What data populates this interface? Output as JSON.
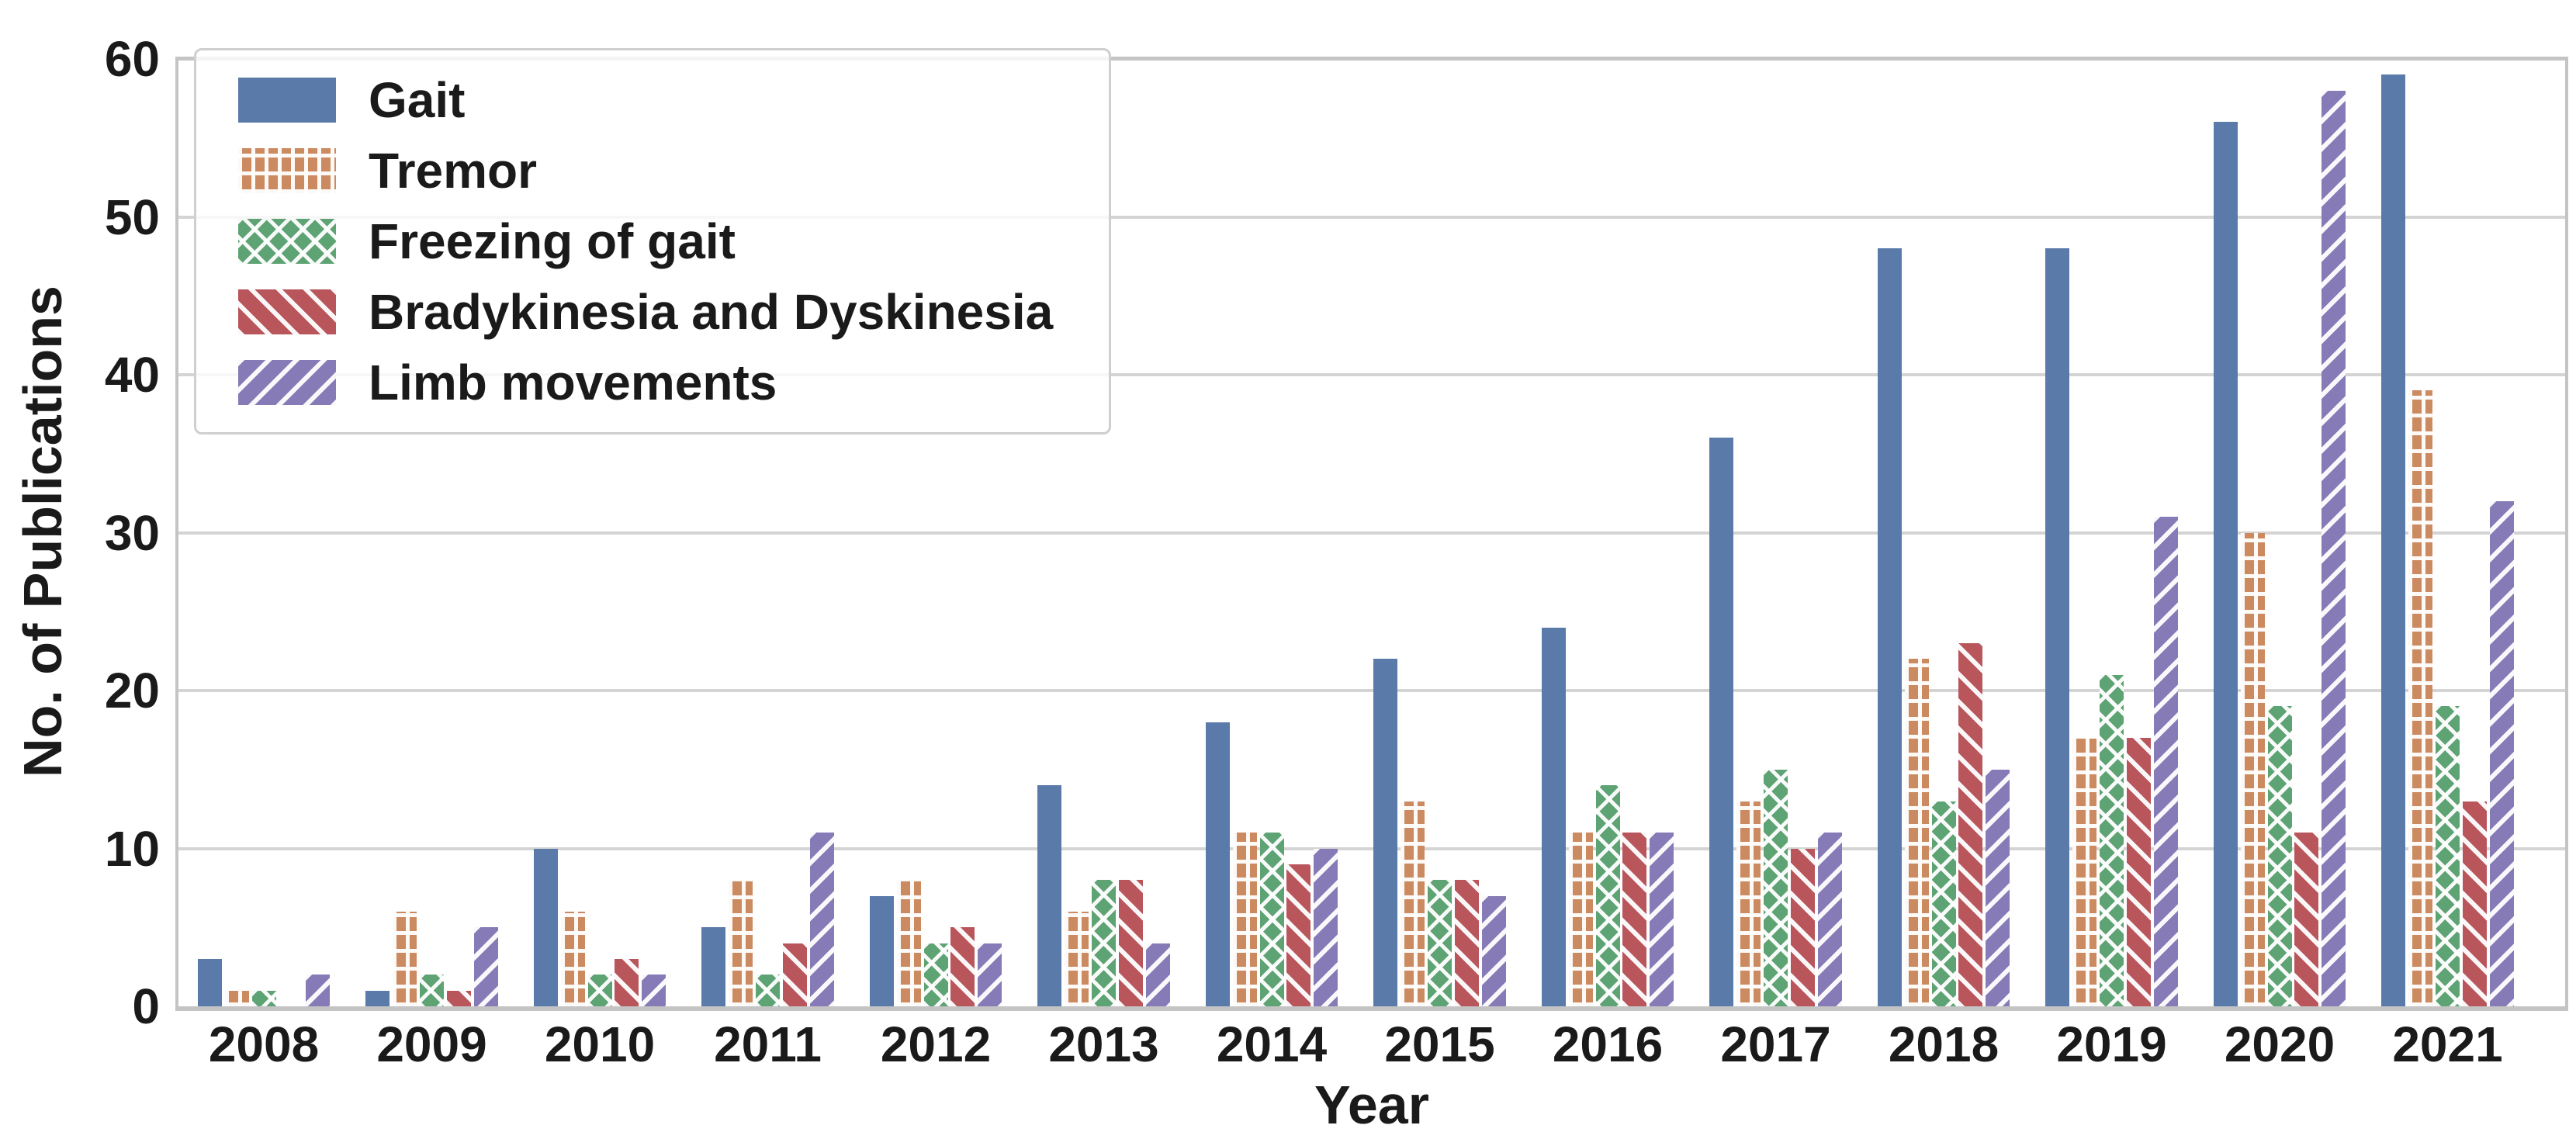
{
  "chart_data": {
    "type": "bar",
    "title": "",
    "xlabel": "Year",
    "ylabel": "No. of Publications",
    "ylim": [
      0,
      60
    ],
    "yticks": [
      0,
      10,
      20,
      30,
      40,
      50,
      60
    ],
    "grid": true,
    "legend_position": "upper left",
    "categories": [
      "2008",
      "2009",
      "2010",
      "2011",
      "2012",
      "2013",
      "2014",
      "2015",
      "2016",
      "2017",
      "2018",
      "2019",
      "2020",
      "2021"
    ],
    "series": [
      {
        "name": "Gait",
        "color": "#5a7aa9",
        "hatch": "none",
        "values": [
          3,
          1,
          10,
          5,
          7,
          14,
          18,
          22,
          24,
          36,
          48,
          48,
          56,
          59
        ]
      },
      {
        "name": "Tremor",
        "color": "#cc8a60",
        "hatch": "grid",
        "values": [
          1,
          6,
          6,
          8,
          8,
          6,
          11,
          13,
          11,
          13,
          22,
          17,
          30,
          39
        ]
      },
      {
        "name": "Freezing of gait",
        "color": "#5ea373",
        "hatch": "cross",
        "values": [
          1,
          2,
          2,
          2,
          4,
          8,
          11,
          8,
          14,
          15,
          13,
          21,
          19,
          19
        ]
      },
      {
        "name": "Bradykinesia and Dyskinesia",
        "color": "#b8565c",
        "hatch": "back",
        "values": [
          0,
          1,
          3,
          4,
          5,
          8,
          9,
          8,
          11,
          10,
          23,
          17,
          11,
          13
        ]
      },
      {
        "name": "Limb movements",
        "color": "#867ab7",
        "hatch": "forward",
        "values": [
          2,
          5,
          2,
          11,
          4,
          4,
          10,
          7,
          11,
          11,
          15,
          31,
          58,
          32
        ]
      }
    ]
  }
}
